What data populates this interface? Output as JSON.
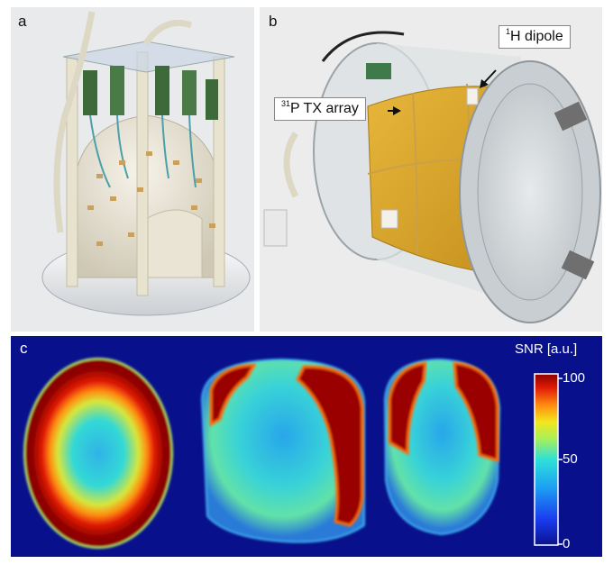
{
  "panels": {
    "a": {
      "label": "a"
    },
    "b": {
      "label": "b",
      "callout_dipole": {
        "sup": "1",
        "text": "H dipole"
      },
      "callout_array": {
        "sup": "31",
        "text": "P TX array"
      }
    },
    "c": {
      "label": "c",
      "colorbar": {
        "title": "SNR [a.u.]",
        "max": "100",
        "mid": "50",
        "min": "0"
      }
    }
  },
  "colors": {
    "cmap_low": "#0a128f",
    "cmap_mid": "#2fe0d8",
    "cmap_high": "#8c0000",
    "coil_gold": "#d9a528"
  }
}
